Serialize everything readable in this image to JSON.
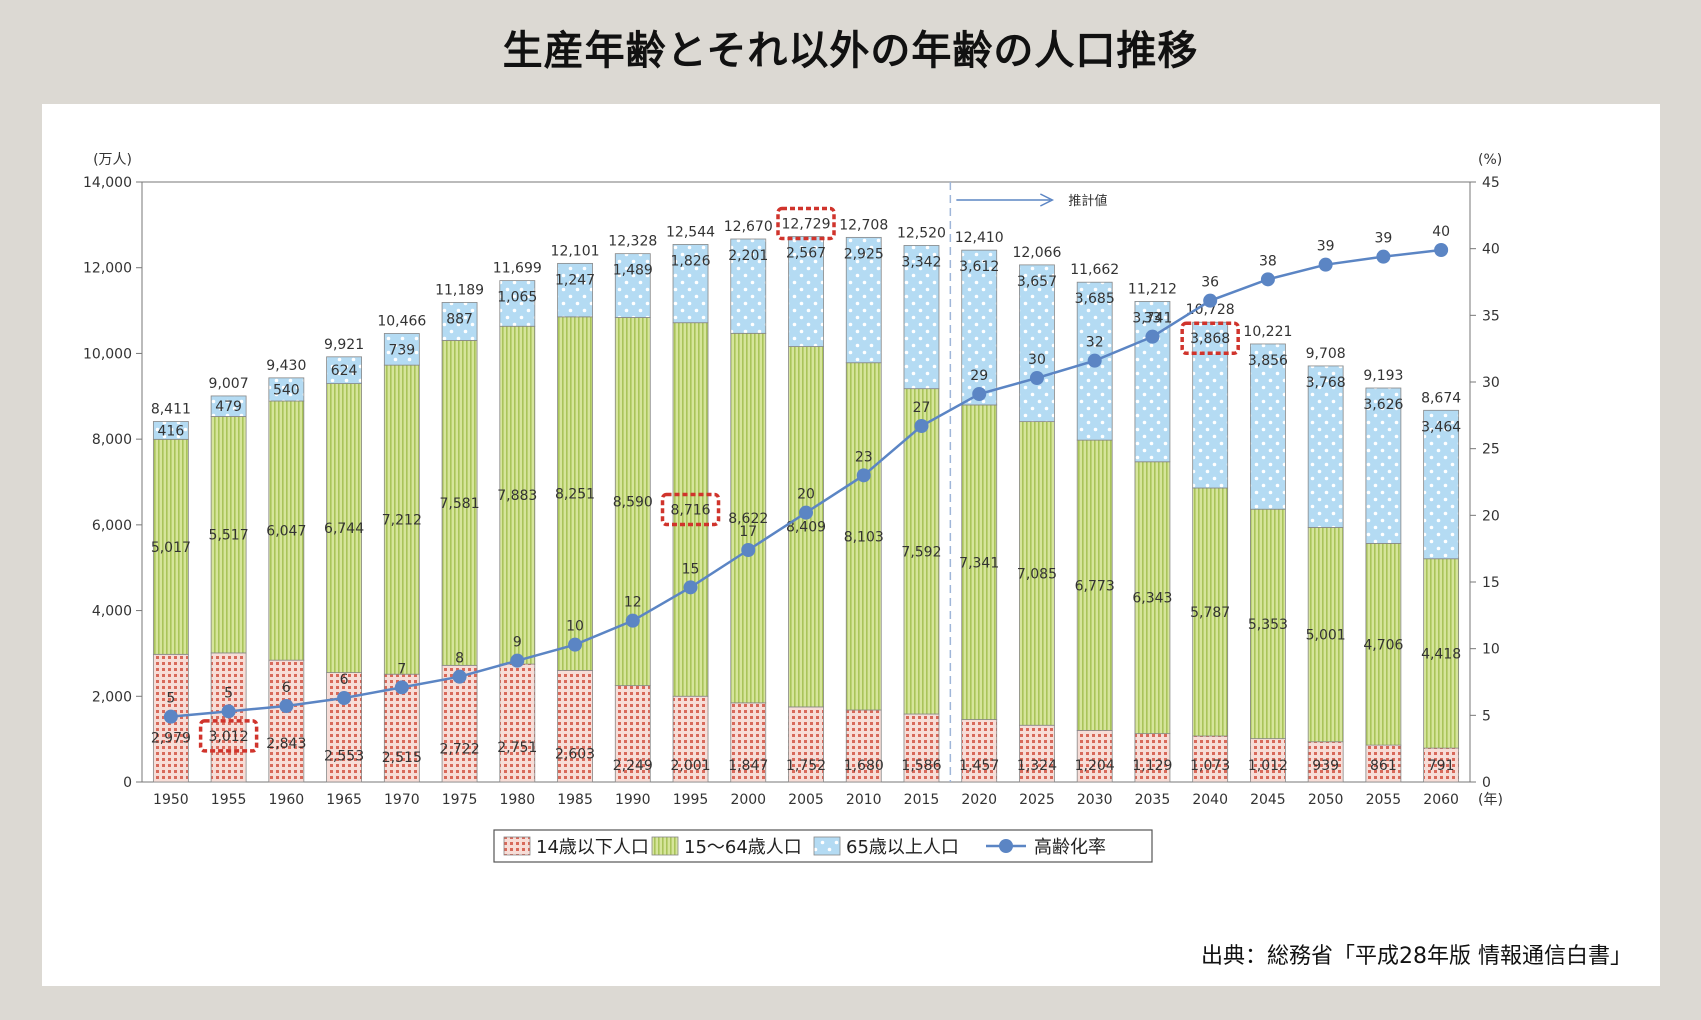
{
  "page": {
    "title": "生産年齢とそれ以外の年齢の人口推移",
    "source": "出典：総務省「平成28年版 情報通信白書」"
  },
  "chart_data": {
    "type": "bar",
    "stacked": true,
    "categories": [
      "1950",
      "1955",
      "1960",
      "1965",
      "1970",
      "1975",
      "1980",
      "1985",
      "1990",
      "1995",
      "2000",
      "2005",
      "2010",
      "2015",
      "2020",
      "2025",
      "2030",
      "2035",
      "2040",
      "2045",
      "2050",
      "2055",
      "2060"
    ],
    "x_unit": "(年)",
    "y_left": {
      "unit": "(万人)",
      "range": [
        0,
        14000
      ],
      "ticks": [
        "0",
        "2,000",
        "4,000",
        "6,000",
        "8,000",
        "10,000",
        "12,000",
        "14,000"
      ]
    },
    "y_right": {
      "unit": "(%)",
      "range": [
        0,
        45
      ],
      "ticks": [
        "0",
        "5",
        "10",
        "15",
        "20",
        "25",
        "30",
        "35",
        "40",
        "45"
      ]
    },
    "series": [
      {
        "name": "14歳以下人口",
        "color": "#e8a79c",
        "values": [
          2979,
          3012,
          2843,
          2553,
          2515,
          2722,
          2751,
          2603,
          2249,
          2001,
          1847,
          1752,
          1680,
          1586,
          1457,
          1324,
          1204,
          1129,
          1073,
          1012,
          939,
          861,
          791
        ],
        "labels": [
          "2,979",
          "3,012",
          "2,843",
          "2,553",
          "2,515",
          "2,722",
          "2,751",
          "2,603",
          "2,249",
          "2,001",
          "1,847",
          "1,752",
          "1,680",
          "1,586",
          "1,457",
          "1,324",
          "1,204",
          "1,129",
          "1,073",
          "1,012",
          "939",
          "861",
          "791"
        ]
      },
      {
        "name": "15～64歳人口",
        "color": "#c8da7e",
        "values": [
          5017,
          5517,
          6047,
          6744,
          7212,
          7581,
          7883,
          8251,
          8590,
          8716,
          8622,
          8409,
          8103,
          7592,
          7341,
          7085,
          6773,
          6343,
          5787,
          5353,
          5001,
          4706,
          4418
        ],
        "labels": [
          "5,017",
          "5,517",
          "6,047",
          "6,744",
          "7,212",
          "7,581",
          "7,883",
          "8,251",
          "8,590",
          "8,716",
          "8,622",
          "8,409",
          "8,103",
          "7,592",
          "7,341",
          "7,085",
          "6,773",
          "6,343",
          "5,787",
          "5,353",
          "5,001",
          "4,706",
          "4,418"
        ]
      },
      {
        "name": "65歳以上人口",
        "color": "#a9d3ef",
        "values": [
          416,
          479,
          540,
          624,
          739,
          887,
          1065,
          1247,
          1489,
          1826,
          2201,
          2567,
          2925,
          3342,
          3612,
          3657,
          3685,
          3741,
          3868,
          3856,
          3768,
          3626,
          3464
        ],
        "labels": [
          "416",
          "479",
          "540",
          "624",
          "739",
          "887",
          "1,065",
          "1,247",
          "1,489",
          "1,826",
          "2,201",
          "2,567",
          "2,925",
          "3,342",
          "3,612",
          "3,657",
          "3,685",
          "3,741",
          "3,868",
          "3,856",
          "3,768",
          "3,626",
          "3,464"
        ]
      }
    ],
    "totals": [
      "8,411",
      "9,007",
      "9,430",
      "9,921",
      "10,466",
      "11,189",
      "11,699",
      "12,101",
      "12,328",
      "12,544",
      "12,670",
      "12,729",
      "12,708",
      "12,520",
      "12,410",
      "12,066",
      "11,662",
      "11,212",
      "10,728",
      "10,221",
      "9,708",
      "9,193",
      "8,674"
    ],
    "line": {
      "name": "高齢化率",
      "axis": "right",
      "color": "#5b85c4",
      "values": [
        4.9,
        5.3,
        5.7,
        6.3,
        7.1,
        7.9,
        9.1,
        10.3,
        12.1,
        14.6,
        17.4,
        20.2,
        23.0,
        26.7,
        29.1,
        30.3,
        31.6,
        33.4,
        36.1,
        37.7,
        38.8,
        39.4,
        39.9
      ],
      "labels": [
        "5",
        "5",
        "6",
        "6",
        "7",
        "8",
        "9",
        "10",
        "12",
        "15",
        "17",
        "20",
        "23",
        "27",
        "29",
        "30",
        "32",
        "33",
        "36",
        "38",
        "39",
        "39",
        "40"
      ]
    },
    "projection": {
      "label": "推計値",
      "from_category": "2020"
    },
    "highlights": [
      {
        "category": "1955",
        "series": "14歳以下人口"
      },
      {
        "category": "1995",
        "series": "15～64歳人口"
      },
      {
        "category": "2005",
        "series": "total"
      },
      {
        "category": "2040",
        "series": "65歳以上人口"
      }
    ],
    "legend": {
      "placement": "bottom"
    },
    "grid": false
  }
}
